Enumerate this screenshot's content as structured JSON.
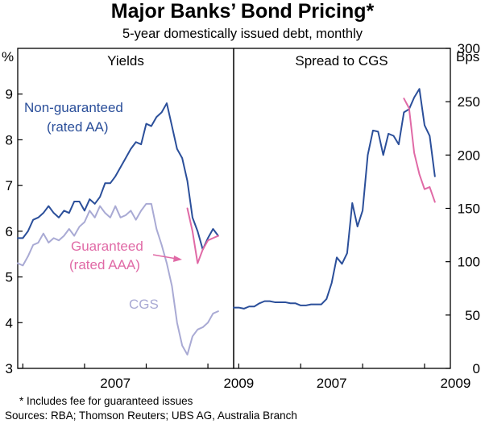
{
  "title": "Major Banks’ Bond Pricing*",
  "subtitle": "5-year domestically issued debt, monthly",
  "footnotes": [
    "*    Includes fee for guaranteed issues",
    "Sources: RBA; Thomson Reuters; UBS AG, Australia Branch"
  ],
  "colors": {
    "non_guaranteed": "#2b4f9a",
    "guaranteed": "#e06aa6",
    "cgs": "#a9aad4",
    "spread_guaranteed": "#e06aa6"
  },
  "chart_data": [
    {
      "type": "line",
      "title": "Yields",
      "ylabel": "%",
      "ylim": [
        3,
        10
      ],
      "yticks": [
        3,
        4,
        5,
        6,
        7,
        8,
        9
      ],
      "xlim": [
        2005.917,
        2009.417
      ],
      "xtick_labels": [
        {
          "x": 2007.5,
          "label": "2007"
        },
        {
          "x": 2009.5,
          "label": "2009"
        }
      ],
      "annotations": [
        "Non-guaranteed",
        "(rated AA)",
        "Guaranteed",
        "(rated AAA)",
        "CGS"
      ],
      "series": [
        {
          "name": "Non-guaranteed (rated AA)",
          "x": [
            2005.917,
            2006.0,
            2006.083,
            2006.167,
            2006.25,
            2006.333,
            2006.417,
            2006.5,
            2006.583,
            2006.667,
            2006.75,
            2006.833,
            2006.917,
            2007.0,
            2007.083,
            2007.167,
            2007.25,
            2007.333,
            2007.417,
            2007.5,
            2007.583,
            2007.667,
            2007.75,
            2007.833,
            2007.917,
            2008.0,
            2008.083,
            2008.167,
            2008.25,
            2008.333,
            2008.417,
            2008.5,
            2008.583,
            2008.667,
            2008.75,
            2008.833,
            2008.917,
            2009.0,
            2009.083,
            2009.167
          ],
          "values": [
            5.85,
            5.85,
            6.0,
            6.25,
            6.3,
            6.4,
            6.55,
            6.4,
            6.3,
            6.45,
            6.4,
            6.65,
            6.65,
            6.45,
            6.7,
            6.6,
            6.75,
            7.05,
            7.05,
            7.2,
            7.4,
            7.6,
            7.8,
            7.95,
            7.9,
            8.35,
            8.3,
            8.5,
            8.6,
            8.8,
            8.3,
            7.8,
            7.6,
            7.1,
            6.3,
            6.0,
            5.6,
            5.85,
            6.05,
            5.9
          ]
        },
        {
          "name": "Guaranteed (rated AAA)",
          "x": [
            2008.667,
            2008.75,
            2008.833,
            2008.917,
            2009.0,
            2009.083,
            2009.167
          ],
          "values": [
            6.5,
            6.0,
            5.3,
            5.6,
            5.8,
            5.85,
            5.9
          ]
        },
        {
          "name": "CGS",
          "x": [
            2005.917,
            2006.0,
            2006.083,
            2006.167,
            2006.25,
            2006.333,
            2006.417,
            2006.5,
            2006.583,
            2006.667,
            2006.75,
            2006.833,
            2006.917,
            2007.0,
            2007.083,
            2007.167,
            2007.25,
            2007.333,
            2007.417,
            2007.5,
            2007.583,
            2007.667,
            2007.75,
            2007.833,
            2007.917,
            2008.0,
            2008.083,
            2008.167,
            2008.25,
            2008.333,
            2008.417,
            2008.5,
            2008.583,
            2008.667,
            2008.75,
            2008.833,
            2008.917,
            2009.0,
            2009.083,
            2009.167
          ],
          "values": [
            5.3,
            5.25,
            5.45,
            5.7,
            5.75,
            5.95,
            5.75,
            5.85,
            5.8,
            5.9,
            6.05,
            5.9,
            6.1,
            6.2,
            6.45,
            6.3,
            6.55,
            6.4,
            6.3,
            6.55,
            6.3,
            6.35,
            6.45,
            6.25,
            6.45,
            6.6,
            6.6,
            6.05,
            5.7,
            5.3,
            4.8,
            4.0,
            3.5,
            3.3,
            3.7,
            3.85,
            3.9,
            4.0,
            4.2,
            4.25
          ]
        }
      ]
    },
    {
      "type": "line",
      "title": "Spread to CGS",
      "ylabel": "Bps",
      "ylim": [
        0,
        300
      ],
      "yticks": [
        0,
        50,
        100,
        150,
        200,
        250,
        300
      ],
      "xlim": [
        2005.917,
        2009.417
      ],
      "xtick_labels": [
        {
          "x": 2007.5,
          "label": "2007"
        },
        {
          "x": 2009.5,
          "label": "2009"
        }
      ],
      "series": [
        {
          "name": "Non-guaranteed spread",
          "x": [
            2005.917,
            2006.0,
            2006.083,
            2006.167,
            2006.25,
            2006.333,
            2006.417,
            2006.5,
            2006.583,
            2006.667,
            2006.75,
            2006.833,
            2006.917,
            2007.0,
            2007.083,
            2007.167,
            2007.25,
            2007.333,
            2007.417,
            2007.5,
            2007.583,
            2007.667,
            2007.75,
            2007.833,
            2007.917,
            2008.0,
            2008.083,
            2008.167,
            2008.25,
            2008.333,
            2008.417,
            2008.5,
            2008.583,
            2008.667,
            2008.75,
            2008.833,
            2008.917,
            2009.0,
            2009.083,
            2009.167
          ],
          "values": [
            57,
            57,
            56,
            58,
            58,
            61,
            63,
            63,
            62,
            62,
            62,
            61,
            61,
            59,
            59,
            60,
            60,
            60,
            65,
            80,
            104,
            98,
            108,
            155,
            133,
            148,
            200,
            223,
            222,
            200,
            220,
            218,
            210,
            240,
            243,
            254,
            262,
            228,
            218,
            180
          ]
        },
        {
          "name": "Guaranteed spread",
          "x": [
            2008.667,
            2008.75,
            2008.833,
            2008.917,
            2009.0,
            2009.083,
            2009.167
          ],
          "values": [
            253,
            244,
            202,
            182,
            168,
            170,
            156
          ]
        }
      ]
    }
  ]
}
